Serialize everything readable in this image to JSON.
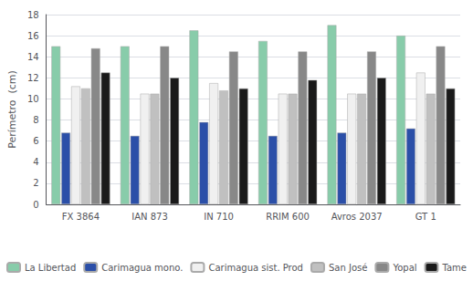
{
  "chart_data": {
    "type": "bar",
    "categories": [
      "FX 3864",
      "IAN 873",
      "IN 710",
      "RRIM 600",
      "Avros 2037",
      "GT 1"
    ],
    "series": [
      {
        "name": "La Libertad",
        "color": "#88ccaa",
        "values": [
          15.0,
          15.0,
          16.5,
          15.5,
          17.0,
          16.0
        ]
      },
      {
        "name": "Carimagua mono.",
        "color": "#2b4fa8",
        "values": [
          6.8,
          6.5,
          7.8,
          6.5,
          6.8,
          7.2
        ]
      },
      {
        "name": "Carimagua sist. Prod",
        "color": "#f0f0f0",
        "values": [
          11.2,
          10.5,
          11.5,
          10.5,
          10.5,
          12.5
        ]
      },
      {
        "name": "San José",
        "color": "#c0c0c0",
        "values": [
          11.0,
          10.5,
          10.8,
          10.5,
          10.5,
          10.5
        ]
      },
      {
        "name": "Yopal",
        "color": "#888888",
        "values": [
          14.8,
          15.0,
          14.5,
          14.5,
          14.5,
          15.0
        ]
      },
      {
        "name": "Tame",
        "color": "#1a1a1a",
        "values": [
          12.5,
          12.0,
          11.0,
          11.8,
          12.0,
          11.0
        ]
      }
    ],
    "ylabel": "Perímetro  (cm)",
    "ylim": [
      0,
      18
    ],
    "yticks": [
      0,
      2,
      4,
      6,
      8,
      10,
      12,
      14,
      16,
      18
    ],
    "grid": true,
    "legend": "bottom"
  }
}
